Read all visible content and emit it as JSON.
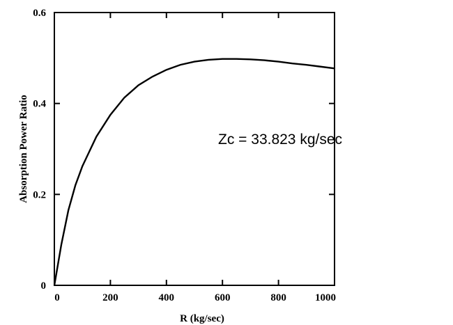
{
  "chart_data": {
    "type": "line",
    "title": "",
    "xlabel": "R (kg/sec)",
    "ylabel": "Absorption Power Ratio",
    "xlim": [
      0,
      1000
    ],
    "ylim": [
      0,
      0.6
    ],
    "x_ticks": [
      "0",
      "200",
      "400",
      "600",
      "800",
      "1000"
    ],
    "y_ticks": [
      "0",
      "0.2",
      "0.4",
      "0.6"
    ],
    "grid": false,
    "annotations": [
      {
        "text": "Zc = 33.823 kg/sec"
      }
    ],
    "series": [
      {
        "x": [
          0,
          25,
          50,
          75,
          100,
          150,
          200,
          250,
          300,
          350,
          400,
          450,
          500,
          550,
          600,
          650,
          700,
          750,
          800,
          850,
          900,
          950,
          1000
        ],
        "y": [
          0.0,
          0.09,
          0.165,
          0.22,
          0.262,
          0.327,
          0.375,
          0.413,
          0.44,
          0.459,
          0.474,
          0.485,
          0.492,
          0.496,
          0.498,
          0.498,
          0.497,
          0.495,
          0.492,
          0.488,
          0.485,
          0.481,
          0.477
        ]
      }
    ]
  }
}
